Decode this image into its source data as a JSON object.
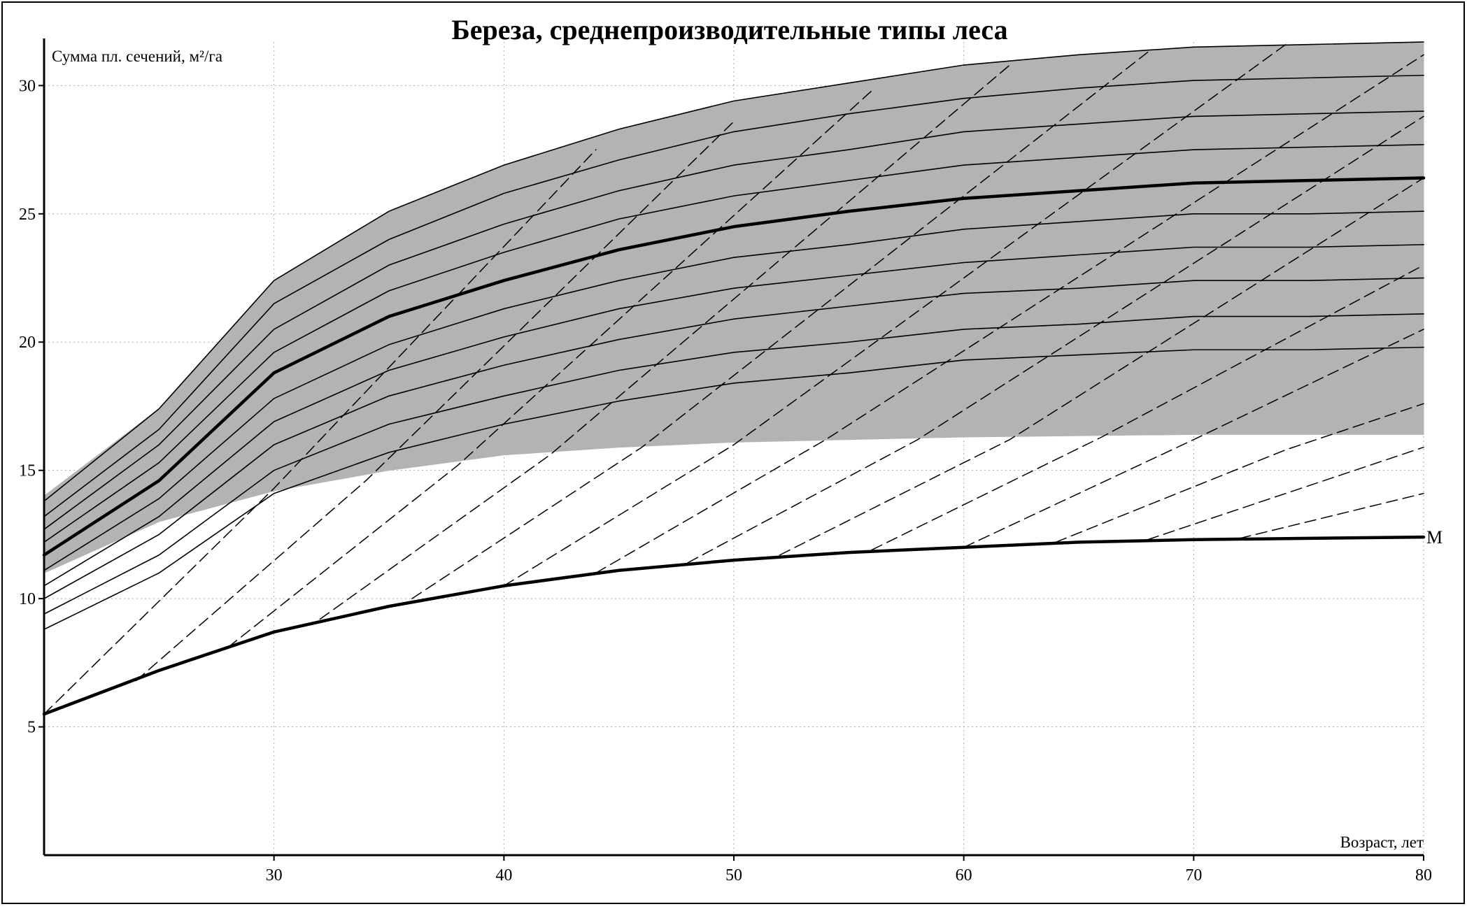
{
  "chart_data": {
    "type": "line",
    "title": "Береза, среднепроизводительные типы леса",
    "y_label": "Сумма пл. сечений, м²/га",
    "x_label": "Возраст, лет",
    "x": [
      20,
      25,
      30,
      35,
      40,
      45,
      50,
      55,
      60,
      65,
      70,
      75,
      80
    ],
    "xlim": [
      20,
      80
    ],
    "ylim": [
      0,
      31.7
    ],
    "xticks": [
      30,
      40,
      50,
      60,
      70,
      80
    ],
    "yticks": [
      5,
      10,
      15,
      20,
      25,
      30
    ],
    "grid": true,
    "band": {
      "color": "#b3b3b3",
      "upper": [
        14.0,
        17.4,
        22.4,
        25.1,
        26.9,
        28.3,
        29.4,
        30.1,
        30.8,
        31.2,
        31.5,
        31.6,
        31.7
      ],
      "lower": [
        11.0,
        13.0,
        14.2,
        15.0,
        15.6,
        15.9,
        16.1,
        16.2,
        16.3,
        16.35,
        16.4,
        16.4,
        16.4
      ]
    },
    "series": [
      {
        "color": "#000000",
        "width": 1.6,
        "dash": false,
        "values": [
          8.8,
          11.0,
          14.1,
          15.7,
          16.8,
          17.7,
          18.4,
          18.8,
          19.3,
          19.5,
          19.7,
          19.7,
          19.8
        ]
      },
      {
        "color": "#000000",
        "width": 1.6,
        "dash": false,
        "values": [
          9.4,
          11.7,
          15.0,
          16.8,
          17.9,
          18.9,
          19.6,
          20.0,
          20.5,
          20.7,
          21.0,
          21.0,
          21.1
        ]
      },
      {
        "color": "#000000",
        "width": 1.6,
        "dash": false,
        "values": [
          10.0,
          12.5,
          16.0,
          17.9,
          19.1,
          20.1,
          20.9,
          21.4,
          21.9,
          22.1,
          22.4,
          22.4,
          22.5
        ]
      },
      {
        "color": "#000000",
        "width": 1.6,
        "dash": false,
        "values": [
          10.5,
          13.2,
          16.9,
          18.9,
          20.2,
          21.3,
          22.1,
          22.6,
          23.1,
          23.4,
          23.7,
          23.7,
          23.8
        ]
      },
      {
        "color": "#000000",
        "width": 1.6,
        "dash": false,
        "values": [
          11.1,
          13.9,
          17.8,
          19.9,
          21.3,
          22.4,
          23.3,
          23.8,
          24.4,
          24.7,
          25.0,
          25.0,
          25.1
        ]
      },
      {
        "color": "#000000",
        "width": 4.5,
        "dash": false,
        "values": [
          11.7,
          14.6,
          18.8,
          21.0,
          22.4,
          23.6,
          24.5,
          25.1,
          25.6,
          25.9,
          26.2,
          26.3,
          26.4
        ]
      },
      {
        "color": "#000000",
        "width": 1.6,
        "dash": false,
        "values": [
          12.2,
          15.3,
          19.6,
          22.0,
          23.5,
          24.8,
          25.7,
          26.3,
          26.9,
          27.2,
          27.5,
          27.6,
          27.7
        ]
      },
      {
        "color": "#000000",
        "width": 1.6,
        "dash": false,
        "values": [
          12.7,
          16.0,
          20.5,
          23.0,
          24.6,
          25.9,
          26.9,
          27.5,
          28.2,
          28.5,
          28.8,
          28.9,
          29.0
        ]
      },
      {
        "color": "#000000",
        "width": 1.6,
        "dash": false,
        "values": [
          13.2,
          16.6,
          21.5,
          24.0,
          25.8,
          27.1,
          28.2,
          28.9,
          29.5,
          29.9,
          30.2,
          30.3,
          30.4
        ]
      },
      {
        "color": "#000000",
        "width": 1.6,
        "dash": false,
        "values": [
          13.8,
          17.4,
          22.4,
          25.1,
          26.9,
          28.3,
          29.4,
          30.1,
          30.8,
          31.2,
          31.5,
          31.6,
          31.7
        ]
      },
      {
        "color": "#000000",
        "width": 4.5,
        "dash": false,
        "values": [
          5.5,
          7.2,
          8.7,
          9.7,
          10.5,
          11.1,
          11.5,
          11.8,
          12.0,
          12.2,
          12.3,
          12.35,
          12.4
        ]
      },
      {
        "color": "#000000",
        "width": 1.5,
        "dash": true,
        "x": [
          20,
          30,
          44
        ],
        "values": [
          5.5,
          14.3,
          27.5
        ]
      },
      {
        "color": "#000000",
        "width": 1.5,
        "dash": true,
        "x": [
          24,
          34,
          50
        ],
        "values": [
          6.8,
          14.6,
          28.6
        ]
      },
      {
        "color": "#000000",
        "width": 1.5,
        "dash": true,
        "x": [
          28,
          38,
          56
        ],
        "values": [
          8.1,
          15.2,
          29.8
        ]
      },
      {
        "color": "#000000",
        "width": 1.5,
        "dash": true,
        "x": [
          32,
          42,
          62
        ],
        "values": [
          9.2,
          15.6,
          30.8
        ]
      },
      {
        "color": "#000000",
        "width": 1.5,
        "dash": true,
        "x": [
          36,
          46,
          68
        ],
        "values": [
          10.0,
          15.9,
          31.3
        ]
      },
      {
        "color": "#000000",
        "width": 1.5,
        "dash": true,
        "x": [
          40,
          50,
          74
        ],
        "values": [
          10.5,
          16.0,
          31.6
        ]
      },
      {
        "color": "#000000",
        "width": 1.5,
        "dash": true,
        "x": [
          44,
          54,
          80
        ],
        "values": [
          11.0,
          16.2,
          31.2
        ]
      },
      {
        "color": "#000000",
        "width": 1.5,
        "dash": true,
        "x": [
          48,
          58,
          80
        ],
        "values": [
          11.4,
          16.2,
          28.8
        ]
      },
      {
        "color": "#000000",
        "width": 1.5,
        "dash": true,
        "x": [
          52,
          62,
          80
        ],
        "values": [
          11.7,
          16.2,
          26.4
        ]
      },
      {
        "color": "#000000",
        "width": 1.5,
        "dash": true,
        "x": [
          56,
          66,
          80
        ],
        "values": [
          11.9,
          16.3,
          23.0
        ]
      },
      {
        "color": "#000000",
        "width": 1.5,
        "dash": true,
        "x": [
          60,
          70,
          80
        ],
        "values": [
          12.0,
          16.2,
          20.5
        ]
      },
      {
        "color": "#000000",
        "width": 1.5,
        "dash": true,
        "x": [
          64,
          74,
          80
        ],
        "values": [
          12.2,
          15.8,
          17.6
        ]
      },
      {
        "color": "#000000",
        "width": 1.5,
        "dash": true,
        "x": [
          68,
          80
        ],
        "values": [
          12.3,
          15.9
        ]
      },
      {
        "color": "#000000",
        "width": 1.5,
        "dash": true,
        "x": [
          72,
          80
        ],
        "values": [
          12.35,
          14.1
        ]
      }
    ],
    "annotations": [
      {
        "text": "M",
        "x": 80,
        "y": 12.4
      }
    ]
  }
}
